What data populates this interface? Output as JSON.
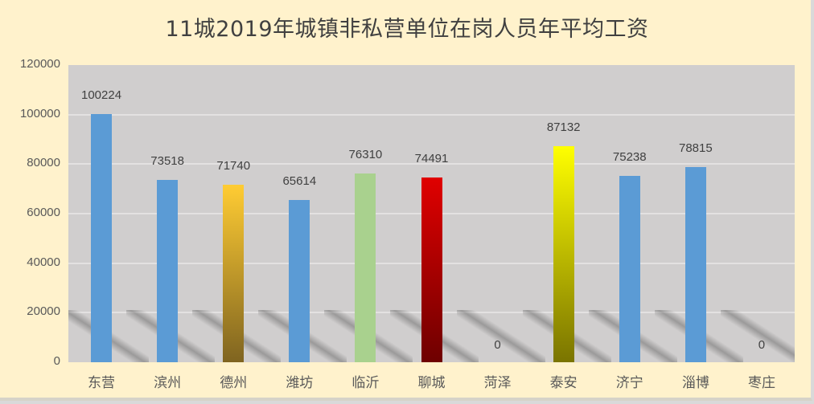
{
  "chart_data": {
    "type": "bar",
    "title": "11城2019年城镇非私营单位在岗人员年平均工资",
    "xlabel": "",
    "ylabel": "",
    "ylim": [
      0,
      120000
    ],
    "yticks": [
      "0",
      "20000",
      "40000",
      "60000",
      "80000",
      "100000",
      "120000"
    ],
    "grid": true,
    "legend": null,
    "categories": [
      "东营",
      "滨州",
      "德州",
      "潍坊",
      "临沂",
      "聊城",
      "菏泽",
      "泰安",
      "济宁",
      "淄博",
      "枣庄"
    ],
    "values": [
      100224,
      73518,
      71740,
      65614,
      76310,
      74491,
      0,
      87132,
      75238,
      78815,
      0
    ],
    "data_labels": [
      "100224",
      "73518",
      "71740",
      "65614",
      "76310",
      "74491",
      "0",
      "87132",
      "75238",
      "78815",
      "0"
    ],
    "bar_colors": [
      "#5b9bd5",
      "#5b9bd5",
      "linear-gradient(to bottom, #ffcc33, #7f6420)",
      "#5b9bd5",
      "#a9d18e",
      "linear-gradient(to bottom, #e00000, #6e0000)",
      "#5b9bd5",
      "linear-gradient(to bottom, #ffff00, #7a7400)",
      "#5b9bd5",
      "#5b9bd5",
      "#5b9bd5"
    ]
  },
  "colors": {
    "chart_background": "#fff2cc",
    "plot_background": "#d0cece",
    "default_bar": "#5b9bd5"
  }
}
